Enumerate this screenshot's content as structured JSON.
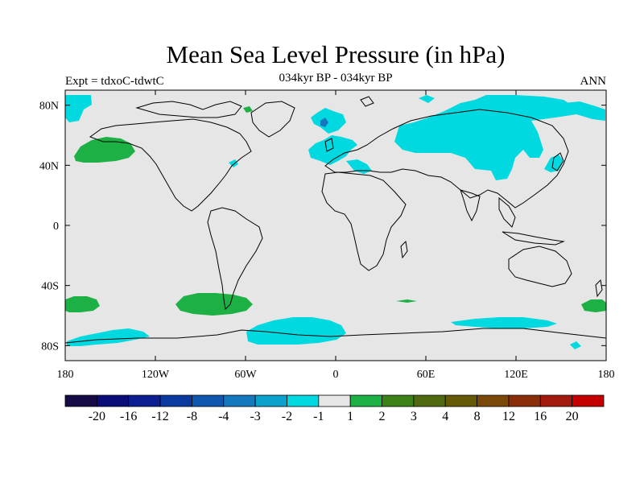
{
  "title": "Mean Sea Level Pressure (in hPa)",
  "subtitle": "034kyr BP - 034kyr BP",
  "left_label": "Expt = tdxoC-tdwtC",
  "right_label": "ANN",
  "lat_ticks": [
    "80N",
    "40N",
    "0",
    "40S",
    "80S"
  ],
  "lon_ticks": [
    "180",
    "120W",
    "60W",
    "0",
    "60E",
    "120E",
    "180"
  ],
  "colorbar": {
    "colors": [
      "#160b46",
      "#0b0c78",
      "#0c1e91",
      "#0a3aa0",
      "#0e56ae",
      "#1478bf",
      "#0aa2cc",
      "#00d9e0",
      "#e6e6e6",
      "#1db045",
      "#3c8218",
      "#4f6a10",
      "#665a08",
      "#7a4808",
      "#8a2e0a",
      "#a21a0e",
      "#c40000"
    ],
    "labels": [
      "-20",
      "-16",
      "-12",
      "-8",
      "-4",
      "-3",
      "-2",
      "-1",
      "1",
      "2",
      "3",
      "4",
      "8",
      "12",
      "16",
      "20"
    ]
  },
  "palette": {
    "background_fill": "#e6e6e6",
    "negative_fill": "#00d9e0",
    "negative_dark_fill": "#1478bf",
    "positive_fill": "#1db045"
  }
}
